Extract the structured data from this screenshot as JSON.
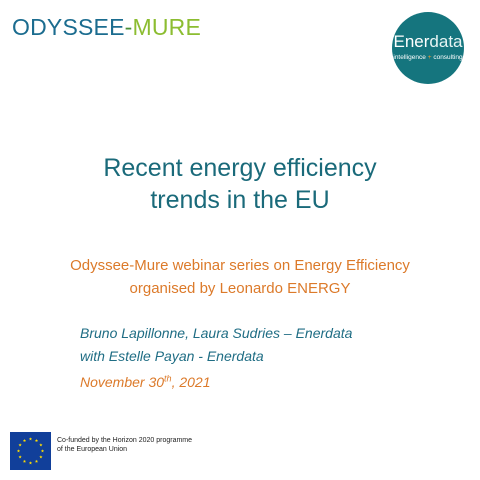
{
  "brand": {
    "part1": "ODYSSEE",
    "separator": "-",
    "part2": "MURE",
    "colors": {
      "odyssee": "#1b6c8f",
      "mure": "#8cbd31"
    }
  },
  "logo": {
    "name_part1": "Ener",
    "name_part2": "data",
    "tagline_part1": "intelligence",
    "tagline_separator": "+",
    "tagline_part2": "consulting",
    "color": "#15757e"
  },
  "title": {
    "line1": "Recent energy efficiency",
    "line2": "trends in the EU"
  },
  "subtitle": {
    "line1": "Odyssee-Mure webinar series on Energy Efficiency",
    "line2": "organised by Leonardo ENERGY"
  },
  "authors": {
    "line1": "Bruno Lapillonne, Laura Sudries – Enerdata",
    "line2": "with Estelle Payan - Enerdata"
  },
  "date": {
    "prefix": "November 30",
    "superscript": "th",
    "suffix": ", 2021"
  },
  "footer": {
    "funding_line1": "Co-funded by the Horizon 2020 programme",
    "funding_line2": "of the European Union",
    "flag_icon": "eu-flag-icon"
  }
}
